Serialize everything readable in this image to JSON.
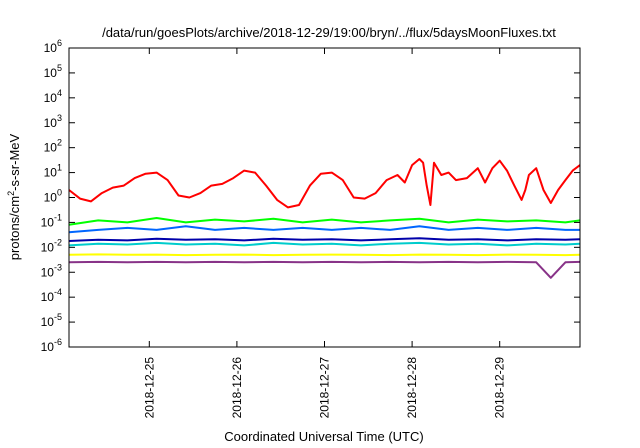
{
  "chart_data": {
    "type": "line",
    "title": "/data/run/goesPlots/archive/2018-12-29/19:00/bryn/../flux/5daysMoonFluxes.txt",
    "xlabel": "Coordinated Universal Time (UTC)",
    "ylabel": {
      "prefix": "protons/cm",
      "sup": "2",
      "suffix": "-s-sr-MeV"
    },
    "yscale": "log",
    "ylim": [
      1e-06,
      1000000.0
    ],
    "xlim": [
      "2018-12-24T02:00",
      "2018-12-29T22:00"
    ],
    "grid": false,
    "y_ticks": [
      {
        "base": "10",
        "exp": "-6",
        "value": 1e-06
      },
      {
        "base": "10",
        "exp": "-5",
        "value": 1e-05
      },
      {
        "base": "10",
        "exp": "-4",
        "value": 0.0001
      },
      {
        "base": "10",
        "exp": "-3",
        "value": 0.001
      },
      {
        "base": "10",
        "exp": "-2",
        "value": 0.01
      },
      {
        "base": "10",
        "exp": "-1",
        "value": 0.1
      },
      {
        "base": "10",
        "exp": "0",
        "value": 1
      },
      {
        "base": "10",
        "exp": "1",
        "value": 10
      },
      {
        "base": "10",
        "exp": "2",
        "value": 100
      },
      {
        "base": "10",
        "exp": "3",
        "value": 1000
      },
      {
        "base": "10",
        "exp": "4",
        "value": 10000
      },
      {
        "base": "10",
        "exp": "5",
        "value": 100000
      },
      {
        "base": "10",
        "exp": "6",
        "value": 1000000
      }
    ],
    "x_ticks": [
      {
        "label": "2018-12-25",
        "value": "2018-12-25T00:00"
      },
      {
        "label": "2018-12-26",
        "value": "2018-12-26T00:00"
      },
      {
        "label": "2018-12-27",
        "value": "2018-12-27T00:00"
      },
      {
        "label": "2018-12-28",
        "value": "2018-12-28T00:00"
      },
      {
        "label": "2018-12-29",
        "value": "2018-12-29T00:00"
      }
    ],
    "series": [
      {
        "color": "#ff0000",
        "x": [
          "2018-12-24T02:00",
          "2018-12-24T05:00",
          "2018-12-24T08:00",
          "2018-12-24T11:00",
          "2018-12-24T14:00",
          "2018-12-24T17:00",
          "2018-12-24T20:00",
          "2018-12-24T23:00",
          "2018-12-25T02:00",
          "2018-12-25T05:00",
          "2018-12-25T08:00",
          "2018-12-25T11:00",
          "2018-12-25T14:00",
          "2018-12-25T17:00",
          "2018-12-25T20:00",
          "2018-12-25T23:00",
          "2018-12-26T02:00",
          "2018-12-26T05:00",
          "2018-12-26T08:00",
          "2018-12-26T11:00",
          "2018-12-26T14:00",
          "2018-12-26T17:00",
          "2018-12-26T20:00",
          "2018-12-26T23:00",
          "2018-12-27T02:00",
          "2018-12-27T05:00",
          "2018-12-27T08:00",
          "2018-12-27T11:00",
          "2018-12-27T14:00",
          "2018-12-27T17:00",
          "2018-12-27T20:00",
          "2018-12-27T22:00",
          "2018-12-28T00:00",
          "2018-12-28T02:00",
          "2018-12-28T03:00",
          "2018-12-28T04:00",
          "2018-12-28T05:00",
          "2018-12-28T06:00",
          "2018-12-28T08:00",
          "2018-12-28T10:00",
          "2018-12-28T12:00",
          "2018-12-28T15:00",
          "2018-12-28T18:00",
          "2018-12-28T20:00",
          "2018-12-28T22:00",
          "2018-12-29T00:00",
          "2018-12-29T02:00",
          "2018-12-29T04:00",
          "2018-12-29T06:00",
          "2018-12-29T07:00",
          "2018-12-29T08:00",
          "2018-12-29T10:00",
          "2018-12-29T12:00",
          "2018-12-29T14:00",
          "2018-12-29T16:00",
          "2018-12-29T18:00",
          "2018-12-29T20:00",
          "2018-12-29T22:00"
        ],
        "values": [
          2,
          0.9,
          0.7,
          1.5,
          2.5,
          3,
          6,
          9,
          10,
          5,
          1.2,
          1,
          1.5,
          3,
          3.5,
          6,
          12,
          10,
          3,
          0.8,
          0.4,
          0.5,
          3,
          9,
          10,
          5,
          1,
          0.9,
          1.5,
          5,
          8,
          4,
          20,
          35,
          25,
          3,
          0.5,
          25,
          8,
          10,
          5,
          6,
          15,
          4,
          15,
          30,
          12,
          3,
          0.8,
          2,
          8,
          15,
          2,
          0.6,
          2,
          5,
          12,
          20
        ]
      },
      {
        "color": "#00ff00",
        "x": [
          "2018-12-24T02:00",
          "2018-12-24T10:00",
          "2018-12-24T18:00",
          "2018-12-25T02:00",
          "2018-12-25T10:00",
          "2018-12-25T18:00",
          "2018-12-26T02:00",
          "2018-12-26T10:00",
          "2018-12-26T18:00",
          "2018-12-27T02:00",
          "2018-12-27T10:00",
          "2018-12-27T18:00",
          "2018-12-28T02:00",
          "2018-12-28T10:00",
          "2018-12-28T18:00",
          "2018-12-29T02:00",
          "2018-12-29T10:00",
          "2018-12-29T18:00",
          "2018-12-29T22:00"
        ],
        "values": [
          0.08,
          0.12,
          0.1,
          0.15,
          0.1,
          0.13,
          0.11,
          0.14,
          0.1,
          0.13,
          0.1,
          0.12,
          0.14,
          0.1,
          0.13,
          0.11,
          0.12,
          0.1,
          0.12
        ]
      },
      {
        "color": "#0066ff",
        "x": [
          "2018-12-24T02:00",
          "2018-12-24T10:00",
          "2018-12-24T18:00",
          "2018-12-25T02:00",
          "2018-12-25T10:00",
          "2018-12-25T18:00",
          "2018-12-26T02:00",
          "2018-12-26T10:00",
          "2018-12-26T18:00",
          "2018-12-27T02:00",
          "2018-12-27T10:00",
          "2018-12-27T18:00",
          "2018-12-28T02:00",
          "2018-12-28T10:00",
          "2018-12-28T18:00",
          "2018-12-29T02:00",
          "2018-12-29T10:00",
          "2018-12-29T18:00",
          "2018-12-29T22:00"
        ],
        "values": [
          0.04,
          0.05,
          0.06,
          0.05,
          0.07,
          0.05,
          0.06,
          0.05,
          0.06,
          0.05,
          0.06,
          0.05,
          0.07,
          0.05,
          0.06,
          0.05,
          0.06,
          0.05,
          0.05
        ]
      },
      {
        "color": "#00cccc",
        "x": [
          "2018-12-24T02:00",
          "2018-12-24T10:00",
          "2018-12-24T18:00",
          "2018-12-25T02:00",
          "2018-12-25T10:00",
          "2018-12-25T18:00",
          "2018-12-26T02:00",
          "2018-12-26T10:00",
          "2018-12-26T18:00",
          "2018-12-27T02:00",
          "2018-12-27T10:00",
          "2018-12-27T18:00",
          "2018-12-28T02:00",
          "2018-12-28T10:00",
          "2018-12-28T18:00",
          "2018-12-29T02:00",
          "2018-12-29T10:00",
          "2018-12-29T18:00",
          "2018-12-29T22:00"
        ],
        "values": [
          0.012,
          0.014,
          0.013,
          0.015,
          0.013,
          0.014,
          0.012,
          0.015,
          0.013,
          0.014,
          0.012,
          0.014,
          0.015,
          0.013,
          0.014,
          0.012,
          0.014,
          0.013,
          0.014
        ]
      },
      {
        "color": "#0000aa",
        "x": [
          "2018-12-24T02:00",
          "2018-12-24T10:00",
          "2018-12-24T18:00",
          "2018-12-25T02:00",
          "2018-12-25T10:00",
          "2018-12-25T18:00",
          "2018-12-26T02:00",
          "2018-12-26T10:00",
          "2018-12-26T18:00",
          "2018-12-27T02:00",
          "2018-12-27T10:00",
          "2018-12-27T18:00",
          "2018-12-28T02:00",
          "2018-12-28T10:00",
          "2018-12-28T18:00",
          "2018-12-29T02:00",
          "2018-12-29T10:00",
          "2018-12-29T18:00",
          "2018-12-29T22:00"
        ],
        "values": [
          0.018,
          0.02,
          0.019,
          0.022,
          0.02,
          0.021,
          0.019,
          0.022,
          0.02,
          0.021,
          0.019,
          0.021,
          0.023,
          0.02,
          0.021,
          0.019,
          0.021,
          0.02,
          0.021
        ]
      },
      {
        "color": "#ffff00",
        "x": [
          "2018-12-24T02:00",
          "2018-12-24T10:00",
          "2018-12-24T18:00",
          "2018-12-25T02:00",
          "2018-12-25T10:00",
          "2018-12-25T18:00",
          "2018-12-26T02:00",
          "2018-12-26T10:00",
          "2018-12-26T18:00",
          "2018-12-27T02:00",
          "2018-12-27T10:00",
          "2018-12-27T18:00",
          "2018-12-28T02:00",
          "2018-12-28T10:00",
          "2018-12-28T18:00",
          "2018-12-29T02:00",
          "2018-12-29T10:00",
          "2018-12-29T18:00",
          "2018-12-29T22:00"
        ],
        "values": [
          0.005,
          0.0052,
          0.005,
          0.0051,
          0.0049,
          0.005,
          0.0051,
          0.0049,
          0.005,
          0.0051,
          0.005,
          0.0049,
          0.0051,
          0.005,
          0.0049,
          0.0051,
          0.005,
          0.0049,
          0.005
        ]
      },
      {
        "color": "#883388",
        "x": [
          "2018-12-24T02:00",
          "2018-12-24T10:00",
          "2018-12-24T18:00",
          "2018-12-25T02:00",
          "2018-12-25T10:00",
          "2018-12-25T18:00",
          "2018-12-26T02:00",
          "2018-12-26T10:00",
          "2018-12-26T18:00",
          "2018-12-27T02:00",
          "2018-12-27T10:00",
          "2018-12-27T18:00",
          "2018-12-28T02:00",
          "2018-12-28T10:00",
          "2018-12-28T18:00",
          "2018-12-29T02:00",
          "2018-12-29T10:00",
          "2018-12-29T14:00",
          "2018-12-29T18:00",
          "2018-12-29T22:00"
        ],
        "values": [
          0.0025,
          0.0026,
          0.0025,
          0.0026,
          0.0025,
          0.0026,
          0.0025,
          0.0026,
          0.0025,
          0.0026,
          0.0025,
          0.0026,
          0.0025,
          0.0026,
          0.0025,
          0.0026,
          0.0025,
          0.0006,
          0.0025,
          0.0026
        ]
      }
    ]
  }
}
